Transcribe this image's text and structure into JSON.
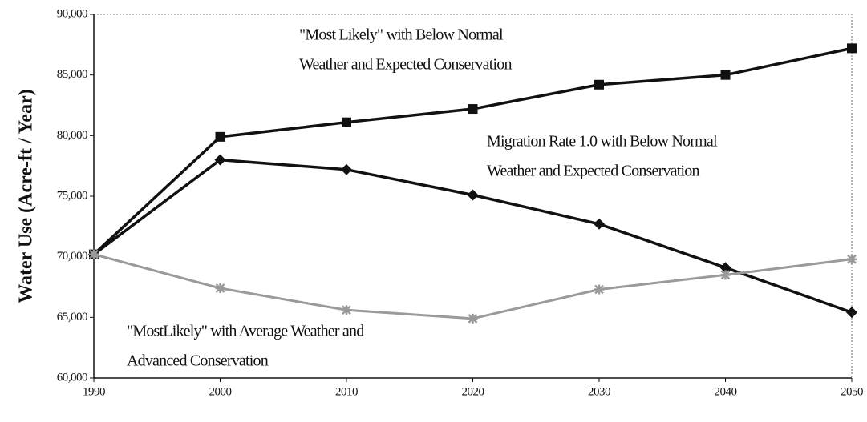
{
  "chart_data": {
    "type": "line",
    "y_label": "Water Use (Acre-ft / Year)",
    "x": [
      1990,
      2000,
      2010,
      2020,
      2030,
      2040,
      2050
    ],
    "xlim": [
      1990,
      2050
    ],
    "xticks": [
      1990,
      2000,
      2010,
      2020,
      2030,
      2040,
      2050
    ],
    "ylim": [
      60000,
      90000
    ],
    "yticks": [
      {
        "value": 60000,
        "label": "60,000"
      },
      {
        "value": 65000,
        "label": "65,000"
      },
      {
        "value": 70000,
        "label": "70,000"
      },
      {
        "value": 75000,
        "label": "75,000"
      },
      {
        "value": 80000,
        "label": "80,000"
      },
      {
        "value": 85000,
        "label": "85,000"
      },
      {
        "value": 90000,
        "label": "90,000"
      }
    ],
    "grid": false,
    "series": [
      {
        "color": "#111111",
        "marker": "square",
        "values": [
          70200,
          79900,
          81100,
          82200,
          84200,
          85000,
          87200
        ]
      },
      {
        "color": "#111111",
        "marker": "diamond",
        "values": [
          70200,
          78000,
          77200,
          75100,
          72700,
          69100,
          65400
        ]
      },
      {
        "color": "#9a9a9a",
        "marker": "star",
        "values": [
          70200,
          67400,
          65600,
          64900,
          67300,
          68500,
          69800
        ]
      }
    ],
    "annotations": [
      {
        "lines": [
          "\"Most Likely\" with Below Normal",
          "Weather and Expected Conservation"
        ]
      },
      {
        "lines": [
          "Migration Rate 1.0 with Below Normal",
          "Weather and Expected Conservation"
        ]
      },
      {
        "lines": [
          "\"MostLikely\" with Average Weather and",
          "Advanced Conservation"
        ]
      }
    ]
  }
}
